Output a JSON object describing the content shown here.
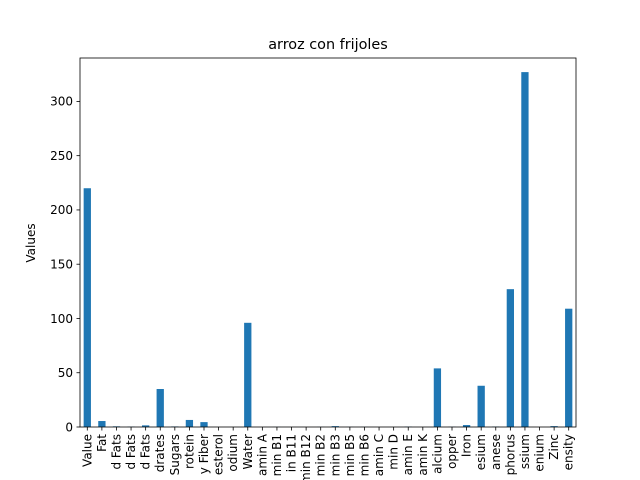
{
  "chart_data": {
    "type": "bar",
    "title": "arroz con frijoles",
    "xlabel": "",
    "ylabel": "Values",
    "ylim": [
      0,
      340
    ],
    "yticks": [
      0,
      50,
      100,
      150,
      200,
      250,
      300
    ],
    "grid": false,
    "bar_color": "#1f77b4",
    "categories": [
      "Value",
      "Fat",
      "d Fats",
      "d Fats",
      "d Fats",
      "drates",
      "Sugars",
      "rotein",
      "y Fiber",
      "esterol",
      "odium",
      "Water",
      "amin A",
      "min B1",
      "in B11",
      "min B12",
      "min B2",
      "min B3",
      "min B5",
      "min B6",
      "amin C",
      "min D",
      "amin E",
      "amin K",
      "alcium",
      "opper",
      "Iron",
      "esium",
      "anese",
      "phorus",
      "ssium",
      "enium",
      "Zinc",
      "ensity"
    ],
    "values": [
      220,
      5.5,
      0.6,
      0.3,
      1.5,
      35,
      0.5,
      6.5,
      4.5,
      0,
      0,
      96,
      0,
      0.1,
      0,
      0,
      0.1,
      0.8,
      0.1,
      0.1,
      0,
      0,
      0.3,
      0,
      54,
      0.2,
      1.8,
      38,
      0.4,
      127,
      327,
      0,
      0.8,
      109
    ]
  }
}
